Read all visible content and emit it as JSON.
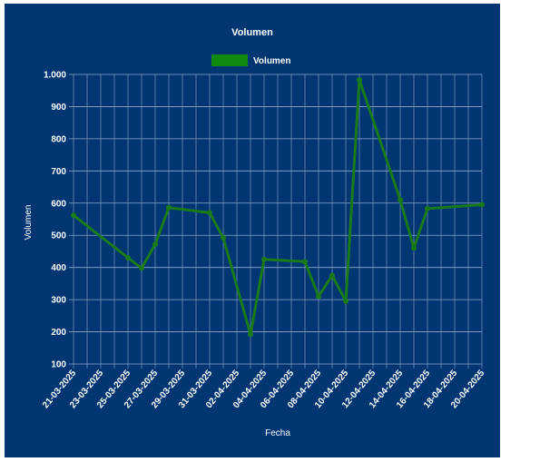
{
  "colors": {
    "panel_background": "#013673",
    "series_line": "#1a7a1a",
    "legend_swatch": "#0f8a0f",
    "grid": "#8fa6c7",
    "text": "#ffffff"
  },
  "chart_data": {
    "type": "line",
    "title": "Volumen",
    "xlabel": "Fecha",
    "ylabel": "Volumen",
    "ylim": [
      100,
      1000
    ],
    "y_ticks": [
      "1.000",
      "900",
      "800",
      "700",
      "600",
      "500",
      "400",
      "300",
      "200",
      "100"
    ],
    "x_ticks": [
      "21-03-2025",
      "23-03-2025",
      "25-03-2025",
      "27-03-2025",
      "29-03-2025",
      "31-03-2025",
      "02-04-2025",
      "04-04-2025",
      "06-04-2025",
      "08-04-2025",
      "10-04-2025",
      "12-04-2025",
      "14-04-2025",
      "16-04-2025",
      "18-04-2025",
      "20-04-2025"
    ],
    "x_range": [
      "2025-03-21",
      "2025-04-20"
    ],
    "grid": true,
    "legend": "top-center",
    "series": [
      {
        "name": "Volumen",
        "points": [
          {
            "date": "2025-03-21",
            "value": 562
          },
          {
            "date": "2025-03-25",
            "value": 430
          },
          {
            "date": "2025-03-26",
            "value": 398
          },
          {
            "date": "2025-03-27",
            "value": 472
          },
          {
            "date": "2025-03-28",
            "value": 586
          },
          {
            "date": "2025-03-31",
            "value": 570
          },
          {
            "date": "2025-04-01",
            "value": 492
          },
          {
            "date": "2025-04-03",
            "value": 192
          },
          {
            "date": "2025-04-04",
            "value": 425
          },
          {
            "date": "2025-04-07",
            "value": 418
          },
          {
            "date": "2025-04-08",
            "value": 310
          },
          {
            "date": "2025-04-09",
            "value": 375
          },
          {
            "date": "2025-04-10",
            "value": 295
          },
          {
            "date": "2025-04-11",
            "value": 983
          },
          {
            "date": "2025-04-14",
            "value": 610
          },
          {
            "date": "2025-04-15",
            "value": 460
          },
          {
            "date": "2025-04-16",
            "value": 583
          },
          {
            "date": "2025-04-20",
            "value": 595
          }
        ]
      }
    ]
  }
}
